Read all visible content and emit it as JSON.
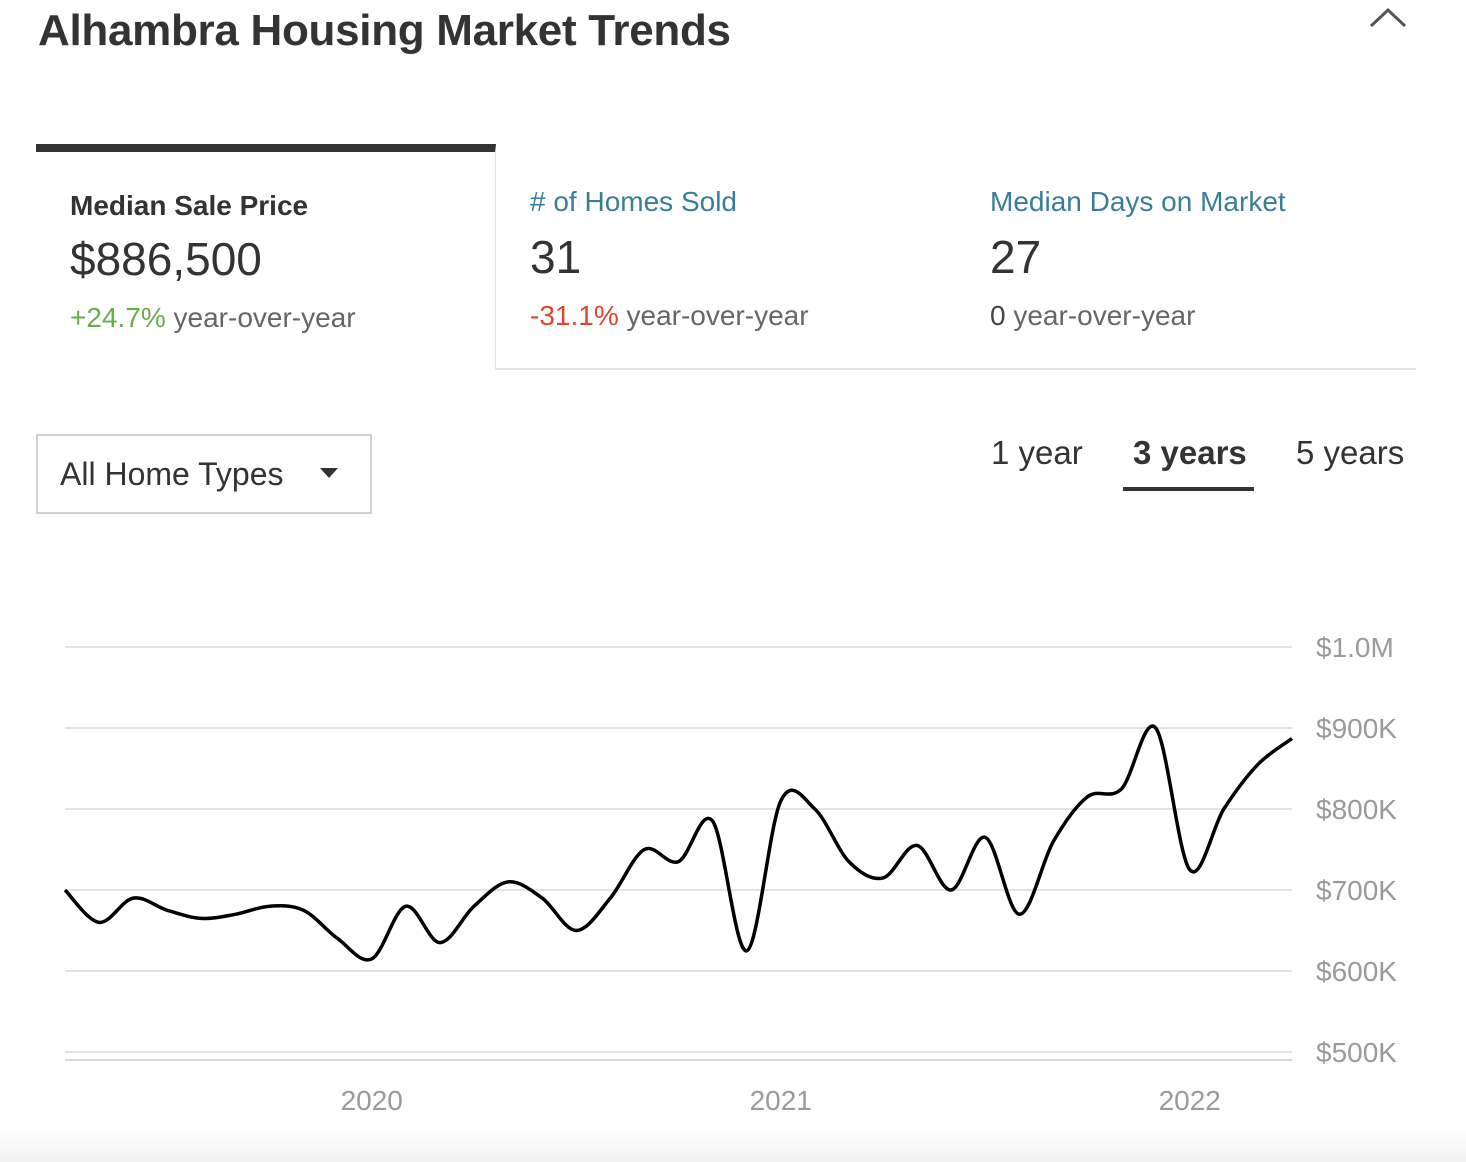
{
  "header": {
    "title": "Alhambra Housing Market Trends",
    "collapse_icon": "chevron-up-icon"
  },
  "stats": [
    {
      "label": "Median Sale Price",
      "value": "$886,500",
      "change": "+24.7%",
      "suffix": " year-over-year",
      "direction": "up",
      "color": "#6aab4c"
    },
    {
      "label": "# of Homes Sold",
      "value": "31",
      "change": "-31.1%",
      "suffix": " year-over-year",
      "direction": "down",
      "color": "#e0452d"
    },
    {
      "label": "Median Days on Market",
      "value": "27",
      "change": "0",
      "suffix": " year-over-year",
      "direction": "neutral",
      "color": "#444444"
    }
  ],
  "filter": {
    "selected": "All Home Types",
    "icon": "caret-down-icon"
  },
  "range_tabs": [
    {
      "label": "1 year",
      "active": false
    },
    {
      "label": "3 years",
      "active": true
    },
    {
      "label": "5 years",
      "active": false
    }
  ],
  "chart_data": {
    "type": "line",
    "title": "",
    "xlabel": "",
    "ylabel": "",
    "x_tick_labels": [
      "2020",
      "2021",
      "2022"
    ],
    "y_tick_labels": [
      "$1.0M",
      "$900K",
      "$800K",
      "$700K",
      "$600K",
      "$500K"
    ],
    "ylim": [
      500000,
      1000000
    ],
    "grid": true,
    "line_color": "#000000",
    "series": [
      {
        "x": [
          "2019-04",
          "2019-05",
          "2019-06",
          "2019-07",
          "2019-08",
          "2019-09",
          "2019-10",
          "2019-11",
          "2019-12",
          "2020-01",
          "2020-02",
          "2020-03",
          "2020-04",
          "2020-05",
          "2020-06",
          "2020-07",
          "2020-08",
          "2020-09",
          "2020-10",
          "2020-11",
          "2020-12",
          "2021-01",
          "2021-02",
          "2021-03",
          "2021-04",
          "2021-05",
          "2021-06",
          "2021-07",
          "2021-08",
          "2021-09",
          "2021-10",
          "2021-11",
          "2021-12",
          "2022-01",
          "2022-02",
          "2022-03",
          "2022-04"
        ],
        "values": [
          700000,
          660000,
          690000,
          675000,
          665000,
          670000,
          680000,
          675000,
          640000,
          615000,
          680000,
          635000,
          680000,
          710000,
          690000,
          650000,
          690000,
          750000,
          735000,
          785000,
          625000,
          810000,
          800000,
          735000,
          715000,
          755000,
          700000,
          765000,
          670000,
          760000,
          815000,
          825000,
          900000,
          725000,
          800000,
          855000,
          887000
        ]
      }
    ]
  }
}
